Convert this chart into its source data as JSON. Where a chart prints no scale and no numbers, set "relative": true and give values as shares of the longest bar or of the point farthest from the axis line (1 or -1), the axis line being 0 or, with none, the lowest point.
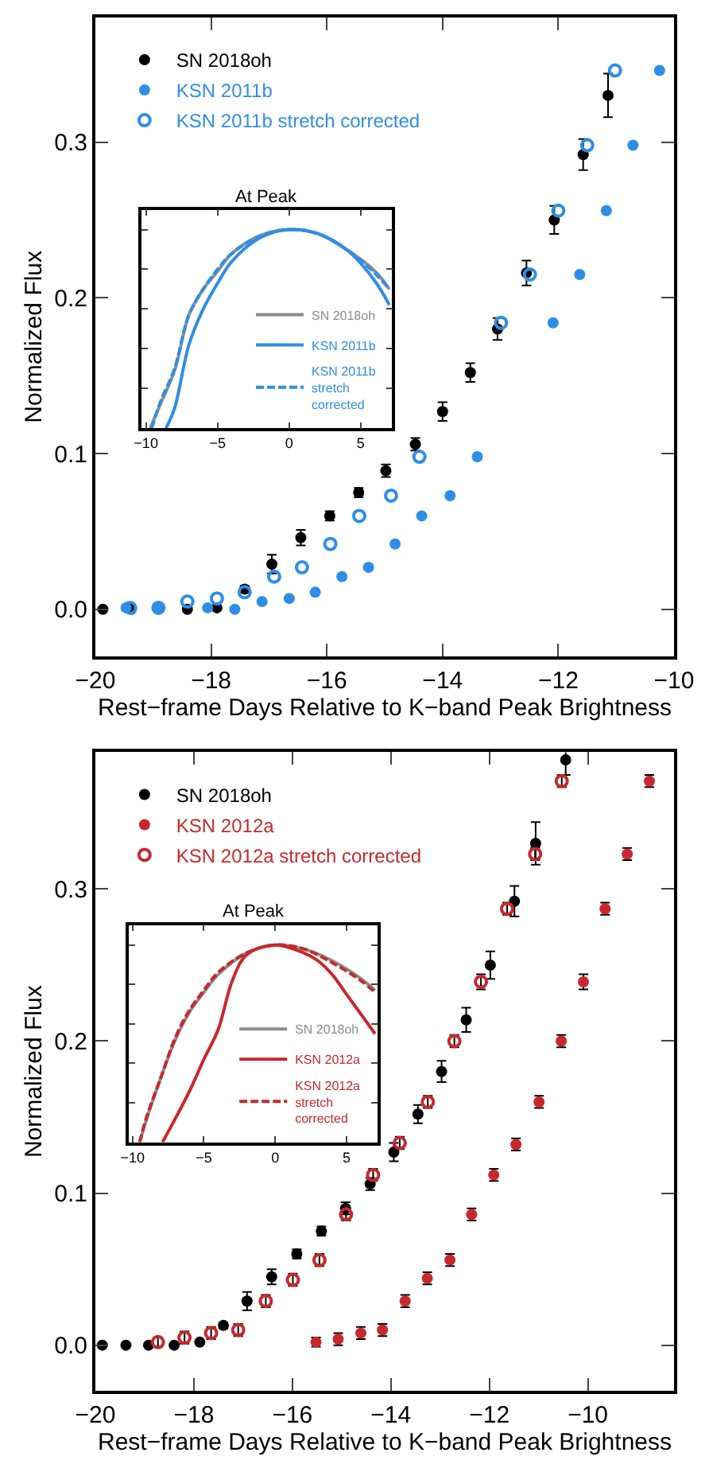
{
  "chart_data": [
    {
      "type": "scatter",
      "xlabel": "Rest−frame Days Relative to K−band Peak Brightness",
      "ylabel": "Normalized Flux",
      "xlim": [
        -20,
        -10
      ],
      "xticks": [
        {
          "value": -20,
          "label": "−20"
        },
        {
          "value": -18,
          "label": "−18"
        },
        {
          "value": -16,
          "label": "−16"
        },
        {
          "value": -14,
          "label": "−14"
        },
        {
          "value": -12,
          "label": "−12"
        },
        {
          "value": -10,
          "label": "−10"
        }
      ],
      "ylim": [
        -0.03,
        0.38
      ],
      "yticks": [
        {
          "value": 0,
          "label": "0.0"
        },
        0.1,
        0.2,
        0.3
      ],
      "legend": "top left",
      "series": [
        {
          "name": "SN 2018oh",
          "color": "#000000",
          "marker": "circle",
          "x": [
            -19.87,
            -19.38,
            -18.41,
            -17.9,
            -17.42,
            -16.95,
            -16.45,
            -15.95,
            -15.45,
            -14.98,
            -14.47,
            -14.0,
            -13.52,
            -13.05,
            -12.55,
            -12.07,
            -11.57,
            -11.14
          ],
          "values": [
            0,
            0,
            0,
            0.001,
            0.013,
            0.029,
            0.046,
            0.06,
            0.075,
            0.089,
            0.106,
            0.127,
            0.152,
            0.18,
            0.216,
            0.25,
            0.292,
            0.33
          ],
          "errors": [
            null,
            null,
            null,
            null,
            0.002,
            0.006,
            0.005,
            0.003,
            0.003,
            0.004,
            0.004,
            0.006,
            0.006,
            0.007,
            0.008,
            0.009,
            0.01,
            0.014
          ]
        },
        {
          "name": "KSN 2011b",
          "color": "#2e8ee6",
          "marker": "circle",
          "x": [
            -19.47,
            -18.91,
            -18.06,
            -17.59,
            -17.12,
            -16.65,
            -16.2,
            -15.74,
            -15.28,
            -14.82,
            -14.36,
            -13.87,
            -13.4,
            -12.09,
            -11.63,
            -11.17,
            -10.71,
            -10.25
          ],
          "values": [
            0.001,
            0.001,
            0.001,
            0,
            0.005,
            0.007,
            0.011,
            0.021,
            0.027,
            0.042,
            0.06,
            0.073,
            0.098,
            0.184,
            0.215,
            0.256,
            0.298,
            0.346
          ]
        },
        {
          "name": "KSN 2011b stretch corrected",
          "color": "#2e8ee6",
          "marker": "circle-open",
          "x": [
            -19.4,
            -18.91,
            -18.41,
            -17.9,
            -17.42,
            -16.91,
            -16.43,
            -15.94,
            -15.44,
            -14.89,
            -14.4,
            -12.99,
            -12.49,
            -12.0,
            -11.5,
            -11.02
          ],
          "values": [
            0.001,
            0.001,
            0.005,
            0.007,
            0.011,
            0.021,
            0.027,
            0.042,
            0.06,
            0.073,
            0.098,
            0.184,
            0.215,
            0.256,
            0.298,
            0.346
          ]
        }
      ]
    },
    {
      "type": "line",
      "title": "At Peak",
      "relative": true,
      "xlim": [
        -10.3,
        7.2
      ],
      "xticks": [
        {
          "value": -10,
          "label": "−10"
        },
        {
          "value": -5,
          "label": "−5"
        },
        0,
        5
      ],
      "legend": "bottom right",
      "series": [
        {
          "name": "SN 2018oh",
          "color": "#8c8c8c",
          "line_style": "solid",
          "x": [
            -9.7,
            -9,
            -8,
            -7,
            -6,
            -5,
            -4,
            -2,
            0,
            2,
            4,
            6,
            7
          ],
          "values": [
            0,
            0.12,
            0.29,
            0.57,
            0.7,
            0.79,
            0.88,
            0.97,
            1,
            0.98,
            0.9,
            0.79,
            0.7
          ]
        },
        {
          "name": "KSN 2011b",
          "color": "#2e8ee6",
          "line_style": "solid",
          "x": [
            -8.6,
            -8,
            -7,
            -6,
            -5,
            -4,
            -2,
            0,
            2,
            4,
            6,
            7
          ],
          "values": [
            0,
            0.1,
            0.42,
            0.6,
            0.73,
            0.84,
            0.96,
            1,
            0.98,
            0.9,
            0.74,
            0.62
          ]
        },
        {
          "name": "KSN 2011b stretch corrected",
          "color": "#2e8ee6",
          "line_style": "dashed",
          "x": [
            -9.6,
            -9,
            -8,
            -7,
            -6,
            -5,
            -4,
            -2,
            0,
            2,
            4,
            6,
            7
          ],
          "values": [
            0,
            0.13,
            0.3,
            0.57,
            0.7,
            0.8,
            0.88,
            0.97,
            1,
            0.98,
            0.9,
            0.78,
            0.7
          ]
        }
      ]
    },
    {
      "type": "scatter",
      "xlabel": "Rest−frame Days Relative to K−band Peak Brightness",
      "ylabel": "Normalized Flux",
      "xlim": [
        -20,
        -8.25
      ],
      "xticks": [
        {
          "value": -20,
          "label": "−20"
        },
        {
          "value": -18,
          "label": "−18"
        },
        {
          "value": -16,
          "label": "−16"
        },
        {
          "value": -14,
          "label": "−14"
        },
        {
          "value": -12,
          "label": "−12"
        },
        {
          "value": -10,
          "label": "−10"
        }
      ],
      "ylim": [
        -0.03,
        0.39
      ],
      "yticks": [
        {
          "value": 0,
          "label": "0.0"
        },
        0.1,
        0.2,
        0.3
      ],
      "legend": "top left",
      "series": [
        {
          "name": "SN 2018oh",
          "color": "#000000",
          "marker": "circle",
          "x": [
            -19.86,
            -19.38,
            -18.92,
            -18.4,
            -17.88,
            -17.4,
            -16.92,
            -16.42,
            -15.91,
            -15.41,
            -14.92,
            -14.42,
            -13.94,
            -13.45,
            -12.97,
            -12.47,
            -11.98,
            -11.49,
            -11.06,
            -10.45
          ],
          "values": [
            0,
            0,
            0,
            0,
            0.002,
            0.013,
            0.029,
            0.045,
            0.06,
            0.075,
            0.09,
            0.106,
            0.127,
            0.152,
            0.18,
            0.214,
            0.25,
            0.292,
            0.33,
            0.385
          ],
          "errors": [
            null,
            null,
            null,
            null,
            null,
            0.002,
            0.006,
            0.005,
            0.003,
            0.003,
            0.004,
            0.004,
            0.006,
            0.006,
            0.007,
            0.008,
            0.009,
            0.01,
            0.014,
            0.01
          ]
        },
        {
          "name": "KSN 2012a",
          "color": "#c8282d",
          "marker": "circle",
          "x": [
            -15.52,
            -15.07,
            -14.61,
            -14.17,
            -13.71,
            -13.26,
            -12.8,
            -12.36,
            -11.91,
            -11.46,
            -10.99,
            -10.54,
            -10.09,
            -9.65,
            -9.2,
            -8.75
          ],
          "values": [
            0.002,
            0.004,
            0.008,
            0.01,
            0.029,
            0.044,
            0.056,
            0.086,
            0.112,
            0.132,
            0.16,
            0.2,
            0.239,
            0.287,
            0.323,
            0.371
          ],
          "errors": [
            0.003,
            0.004,
            0.004,
            0.004,
            0.004,
            0.004,
            0.004,
            0.004,
            0.004,
            0.004,
            0.004,
            0.004,
            0.005,
            0.004,
            0.004,
            0.004
          ]
        },
        {
          "name": "KSN 2012a stretch corrected",
          "color": "#c8282d",
          "marker": "circle-open",
          "x": [
            -18.73,
            -18.19,
            -17.65,
            -17.1,
            -16.54,
            -15.99,
            -15.45,
            -14.91,
            -14.36,
            -13.82,
            -13.25,
            -12.71,
            -12.17,
            -11.64,
            -11.07,
            -10.53
          ],
          "values": [
            0.002,
            0.005,
            0.008,
            0.01,
            0.029,
            0.043,
            0.056,
            0.086,
            0.112,
            0.133,
            0.16,
            0.2,
            0.239,
            0.287,
            0.323,
            0.371
          ],
          "errors": [
            0.003,
            0.004,
            0.004,
            0.004,
            0.004,
            0.004,
            0.004,
            0.004,
            0.004,
            0.004,
            0.004,
            0.004,
            0.005,
            0.004,
            0.004,
            0.004
          ]
        }
      ]
    },
    {
      "type": "line",
      "title": "At Peak",
      "relative": true,
      "xlim": [
        -10.25,
        7.15
      ],
      "xticks": [
        {
          "value": -10,
          "label": "−10"
        },
        {
          "value": -5,
          "label": "−5"
        },
        0,
        5
      ],
      "legend": "bottom right",
      "series": [
        {
          "name": "SN 2018oh",
          "color": "#8c8c8c",
          "line_style": "solid",
          "x": [
            -9.5,
            -9,
            -8,
            -7,
            -6,
            -5,
            -4,
            -2,
            0,
            2,
            4,
            6,
            7
          ],
          "values": [
            0,
            0.12,
            0.33,
            0.52,
            0.66,
            0.76,
            0.85,
            0.96,
            1,
            0.98,
            0.92,
            0.83,
            0.77
          ]
        },
        {
          "name": "KSN 2012a",
          "color": "#c8282d",
          "line_style": "solid",
          "x": [
            -7.9,
            -7,
            -6,
            -5,
            -4,
            -3,
            -2,
            0,
            2,
            3,
            4,
            5,
            6,
            7
          ],
          "values": [
            0,
            0.12,
            0.26,
            0.42,
            0.57,
            0.82,
            0.95,
            1,
            0.96,
            0.92,
            0.85,
            0.75,
            0.65,
            0.55
          ]
        },
        {
          "name": "KSN 2012a stretch corrected",
          "color": "#c8282d",
          "line_style": "dashed",
          "x": [
            -9.5,
            -9,
            -8,
            -7,
            -6,
            -5,
            -4,
            -2,
            0,
            2,
            4,
            6,
            7
          ],
          "values": [
            0,
            0.13,
            0.33,
            0.53,
            0.67,
            0.77,
            0.86,
            0.96,
            1,
            0.98,
            0.91,
            0.82,
            0.76
          ]
        }
      ]
    }
  ]
}
